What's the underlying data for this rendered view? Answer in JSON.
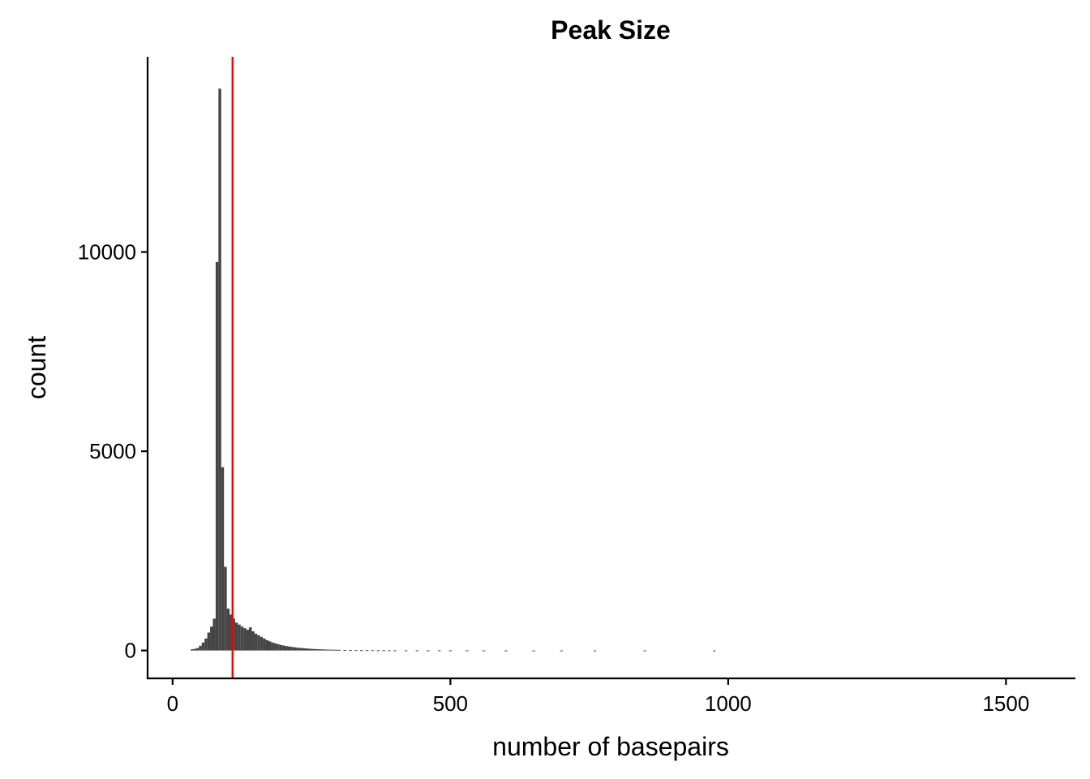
{
  "chart_data": {
    "type": "bar",
    "title": "Peak Size",
    "xlabel": "number of basepairs",
    "ylabel": "count",
    "xlim": [
      -45,
      1625
    ],
    "ylim": [
      -700,
      14900
    ],
    "xticks": [
      0,
      500,
      1000,
      1500
    ],
    "yticks": [
      0,
      5000,
      10000
    ],
    "bin_width": 5,
    "bar_color": "#454545",
    "vline": {
      "x": 108,
      "color": "#ff0000"
    },
    "bins": [
      {
        "x": 35,
        "count": 30
      },
      {
        "x": 40,
        "count": 40
      },
      {
        "x": 45,
        "count": 60
      },
      {
        "x": 50,
        "count": 120
      },
      {
        "x": 55,
        "count": 200
      },
      {
        "x": 60,
        "count": 300
      },
      {
        "x": 65,
        "count": 450
      },
      {
        "x": 70,
        "count": 600
      },
      {
        "x": 75,
        "count": 800
      },
      {
        "x": 80,
        "count": 9750
      },
      {
        "x": 85,
        "count": 14100
      },
      {
        "x": 90,
        "count": 4600
      },
      {
        "x": 95,
        "count": 2100
      },
      {
        "x": 100,
        "count": 1050
      },
      {
        "x": 105,
        "count": 900
      },
      {
        "x": 110,
        "count": 800
      },
      {
        "x": 115,
        "count": 700
      },
      {
        "x": 120,
        "count": 650
      },
      {
        "x": 125,
        "count": 600
      },
      {
        "x": 130,
        "count": 560
      },
      {
        "x": 135,
        "count": 520
      },
      {
        "x": 140,
        "count": 580
      },
      {
        "x": 145,
        "count": 480
      },
      {
        "x": 150,
        "count": 420
      },
      {
        "x": 155,
        "count": 380
      },
      {
        "x": 160,
        "count": 340
      },
      {
        "x": 165,
        "count": 300
      },
      {
        "x": 170,
        "count": 260
      },
      {
        "x": 175,
        "count": 230
      },
      {
        "x": 180,
        "count": 200
      },
      {
        "x": 185,
        "count": 180
      },
      {
        "x": 190,
        "count": 160
      },
      {
        "x": 195,
        "count": 140
      },
      {
        "x": 200,
        "count": 125
      },
      {
        "x": 205,
        "count": 110
      },
      {
        "x": 210,
        "count": 100
      },
      {
        "x": 215,
        "count": 90
      },
      {
        "x": 220,
        "count": 80
      },
      {
        "x": 225,
        "count": 72
      },
      {
        "x": 230,
        "count": 65
      },
      {
        "x": 235,
        "count": 58
      },
      {
        "x": 240,
        "count": 52
      },
      {
        "x": 245,
        "count": 47
      },
      {
        "x": 250,
        "count": 42
      },
      {
        "x": 255,
        "count": 38
      },
      {
        "x": 260,
        "count": 34
      },
      {
        "x": 265,
        "count": 31
      },
      {
        "x": 270,
        "count": 28
      },
      {
        "x": 275,
        "count": 25
      },
      {
        "x": 280,
        "count": 23
      },
      {
        "x": 285,
        "count": 21
      },
      {
        "x": 290,
        "count": 19
      },
      {
        "x": 295,
        "count": 17
      },
      {
        "x": 300,
        "count": 16
      },
      {
        "x": 310,
        "count": 14
      },
      {
        "x": 320,
        "count": 12
      },
      {
        "x": 330,
        "count": 10
      },
      {
        "x": 340,
        "count": 9
      },
      {
        "x": 350,
        "count": 8
      },
      {
        "x": 360,
        "count": 7
      },
      {
        "x": 370,
        "count": 6
      },
      {
        "x": 380,
        "count": 6
      },
      {
        "x": 390,
        "count": 5
      },
      {
        "x": 400,
        "count": 5
      },
      {
        "x": 420,
        "count": 4
      },
      {
        "x": 440,
        "count": 4
      },
      {
        "x": 460,
        "count": 3
      },
      {
        "x": 480,
        "count": 3
      },
      {
        "x": 500,
        "count": 3
      },
      {
        "x": 530,
        "count": 2
      },
      {
        "x": 560,
        "count": 2
      },
      {
        "x": 600,
        "count": 2
      },
      {
        "x": 650,
        "count": 1
      },
      {
        "x": 700,
        "count": 1
      },
      {
        "x": 760,
        "count": 1
      },
      {
        "x": 850,
        "count": 1
      },
      {
        "x": 975,
        "count": 1
      }
    ]
  }
}
